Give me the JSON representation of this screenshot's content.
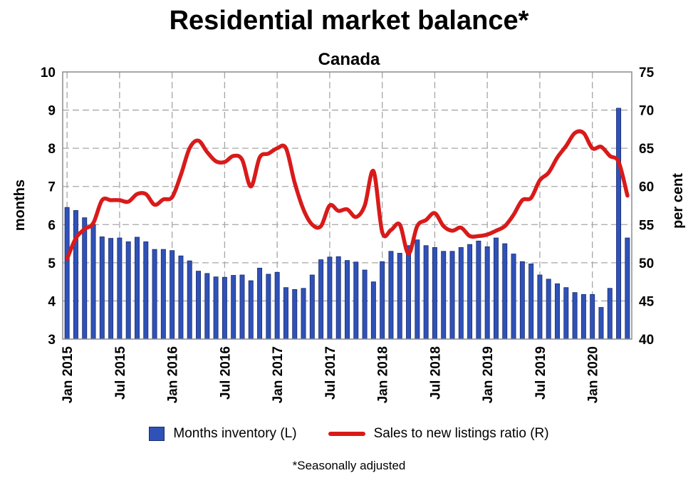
{
  "chart_data": {
    "type": "bar",
    "title": "Residential market balance*",
    "subtitle": "Canada",
    "ylabel_left": "months",
    "ylabel_right": "per cent",
    "ylim_left": [
      3,
      10
    ],
    "ylim_right": [
      40,
      75
    ],
    "yticks_left": [
      "3",
      "4",
      "5",
      "6",
      "7",
      "8",
      "9",
      "10"
    ],
    "yticks_right": [
      "40",
      "45",
      "50",
      "55",
      "60",
      "65",
      "70",
      "75"
    ],
    "xtick_labels": [
      "Jan 2015",
      "Jul 2015",
      "Jan 2016",
      "Jul 2016",
      "Jan 2017",
      "Jul 2017",
      "Jan 2018",
      "Jul 2018",
      "Jan 2019",
      "Jul 2019",
      "Jan 2020"
    ],
    "grid": true,
    "legend_position": "bottom",
    "x": [
      "2015-01",
      "2015-02",
      "2015-03",
      "2015-04",
      "2015-05",
      "2015-06",
      "2015-07",
      "2015-08",
      "2015-09",
      "2015-10",
      "2015-11",
      "2015-12",
      "2016-01",
      "2016-02",
      "2016-03",
      "2016-04",
      "2016-05",
      "2016-06",
      "2016-07",
      "2016-08",
      "2016-09",
      "2016-10",
      "2016-11",
      "2016-12",
      "2017-01",
      "2017-02",
      "2017-03",
      "2017-04",
      "2017-05",
      "2017-06",
      "2017-07",
      "2017-08",
      "2017-09",
      "2017-10",
      "2017-11",
      "2017-12",
      "2018-01",
      "2018-02",
      "2018-03",
      "2018-04",
      "2018-05",
      "2018-06",
      "2018-07",
      "2018-08",
      "2018-09",
      "2018-10",
      "2018-11",
      "2018-12",
      "2019-01",
      "2019-02",
      "2019-03",
      "2019-04",
      "2019-05",
      "2019-06",
      "2019-07",
      "2019-08",
      "2019-09",
      "2019-10",
      "2019-11",
      "2019-12",
      "2020-01",
      "2020-02",
      "2020-03",
      "2020-04",
      "2020-05"
    ],
    "series": [
      {
        "name": "Months inventory (L)",
        "type": "bar",
        "axis": "left",
        "color": "#2f52b8",
        "values": [
          6.45,
          6.37,
          6.18,
          6.0,
          5.68,
          5.64,
          5.65,
          5.55,
          5.67,
          5.55,
          5.35,
          5.35,
          5.32,
          5.18,
          5.05,
          4.78,
          4.72,
          4.63,
          4.62,
          4.67,
          4.68,
          4.53,
          4.86,
          4.7,
          4.75,
          4.35,
          4.3,
          4.33,
          4.68,
          5.08,
          5.15,
          5.16,
          5.06,
          5.02,
          4.81,
          4.5,
          5.03,
          5.3,
          5.25,
          5.45,
          5.6,
          5.45,
          5.4,
          5.3,
          5.3,
          5.4,
          5.48,
          5.57,
          5.42,
          5.65,
          5.5,
          5.23,
          5.03,
          4.97,
          4.68,
          4.57,
          4.45,
          4.35,
          4.22,
          4.17,
          4.17,
          3.83,
          4.33,
          9.05,
          5.65
        ]
      },
      {
        "name": "Sales to new listings ratio (R)",
        "type": "line",
        "axis": "right",
        "color": "#d91a1a",
        "values": [
          50.5,
          53.2,
          54.4,
          55.2,
          58.2,
          58.2,
          58.2,
          58.0,
          59.0,
          59.0,
          57.6,
          58.3,
          58.6,
          61.5,
          65.0,
          66.0,
          64.5,
          63.3,
          63.2,
          64.0,
          63.5,
          60.0,
          63.8,
          64.3,
          65.0,
          65.0,
          60.5,
          57.0,
          55.0,
          54.8,
          57.5,
          56.8,
          57.0,
          56.0,
          57.5,
          62.0,
          54.0,
          54.3,
          55.0,
          51.2,
          54.8,
          55.6,
          56.5,
          54.8,
          54.2,
          54.6,
          53.5,
          53.5,
          53.7,
          54.2,
          54.8,
          56.3,
          58.2,
          58.5,
          60.8,
          61.8,
          63.8,
          65.3,
          67.0,
          67.0,
          65.0,
          65.2,
          64.0,
          63.2,
          58.8
        ]
      }
    ],
    "footnote": "*Seasonally adjusted"
  }
}
